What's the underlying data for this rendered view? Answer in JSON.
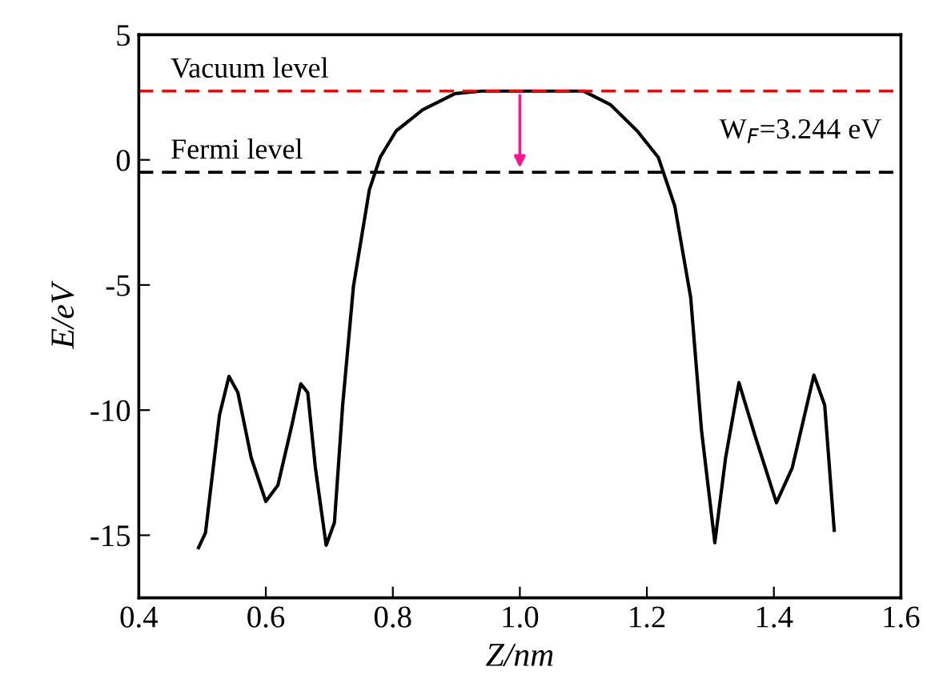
{
  "chart_data": {
    "type": "line",
    "xlabel": "Z/nm",
    "ylabel": "E/eV",
    "xlim": [
      0.4,
      1.6
    ],
    "xticks": [
      0.4,
      0.6,
      0.8,
      {
        "value": 1.0,
        "label": "1.0"
      },
      1.2,
      1.4,
      1.6
    ],
    "ylim": [
      -17.5,
      5
    ],
    "yticks": [
      -15,
      -10,
      -5,
      0,
      5
    ],
    "grid": false,
    "legend": false,
    "marker": "none",
    "line_style": "solid",
    "series": [
      {
        "color": "#000000",
        "x": [
          0.494,
          0.505,
          0.527,
          0.542,
          0.556,
          0.577,
          0.6,
          0.619,
          0.641,
          0.655,
          0.666,
          0.678,
          0.695,
          0.708,
          0.721,
          0.738,
          0.763,
          0.78,
          0.805,
          0.847,
          0.898,
          0.94,
          1.0,
          1.1,
          1.143,
          1.185,
          1.218,
          1.244,
          1.269,
          1.286,
          1.307,
          1.324,
          1.345,
          1.37,
          1.404,
          1.429,
          1.463,
          1.48,
          1.495
        ],
        "values": [
          -15.5,
          -14.9,
          -10.2,
          -8.65,
          -9.3,
          -11.9,
          -13.65,
          -13.0,
          -10.6,
          -8.95,
          -9.3,
          -12.3,
          -15.4,
          -14.5,
          -9.8,
          -5.05,
          -1.2,
          0.1,
          1.15,
          2.0,
          2.65,
          2.75,
          2.75,
          2.75,
          2.2,
          1.15,
          0.1,
          -1.85,
          -5.5,
          -10.8,
          -15.3,
          -11.9,
          -8.9,
          -11.0,
          -13.7,
          -12.3,
          -8.6,
          -9.8,
          -14.8
        ]
      }
    ],
    "ref_lines": [
      {
        "axis": "y",
        "value": 2.75,
        "label": "Vacuum level",
        "color": "#ff0000",
        "line_style": "dashed"
      },
      {
        "axis": "y",
        "value": -0.494,
        "label": "Fermi level",
        "color": "#000000",
        "line_style": "dashed"
      }
    ],
    "annotations": [
      "W$_{F}$=3.244 eV"
    ]
  }
}
